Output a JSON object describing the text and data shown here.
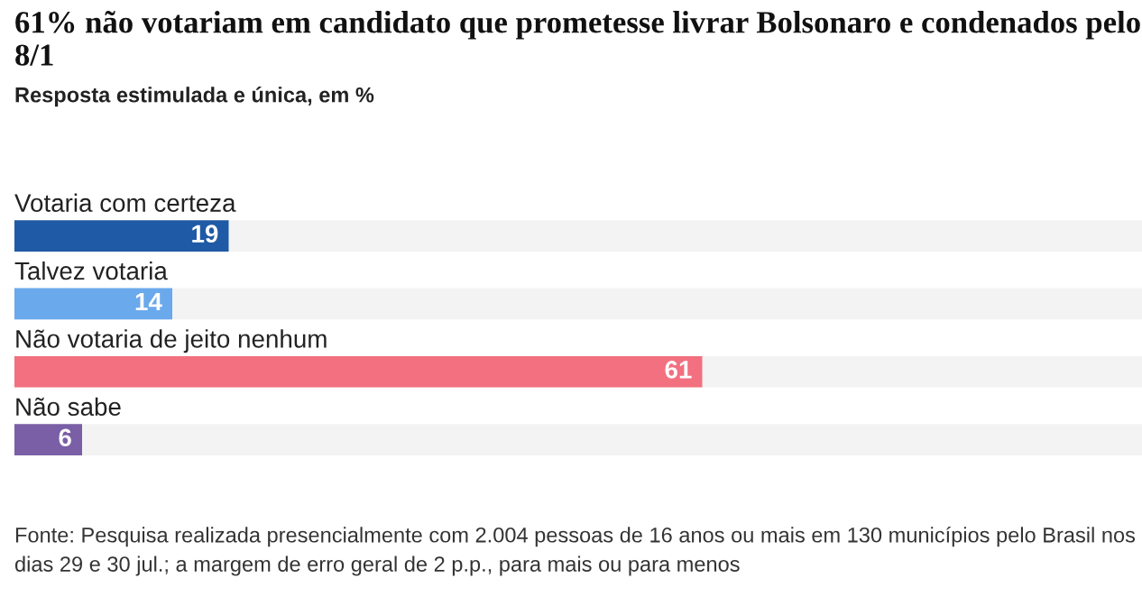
{
  "chart_data": {
    "type": "bar",
    "orientation": "horizontal",
    "title": "61% não votariam em candidato que prometesse livrar Bolsonaro e condenados pelo 8/1",
    "subtitle": "Resposta estimulada e única, em %",
    "categories": [
      "Votaria com certeza",
      "Talvez votaria",
      "Não votaria de jeito nenhum",
      "Não sabe"
    ],
    "values": [
      19,
      14,
      61,
      6
    ],
    "colors": [
      "#1f5aa6",
      "#6aa9ec",
      "#f2707f",
      "#7a5ea6"
    ],
    "xlim": [
      0,
      100
    ],
    "data_labels": true,
    "annotations": [
      "Fonte: Pesquisa realizada presencialmente com 2.004 pessoas de 16 anos ou mais em 130 municípios pelo Brasil nos dias 29 e 30 jul.; a margem de erro geral de 2 p.p., para mais ou para menos"
    ]
  }
}
